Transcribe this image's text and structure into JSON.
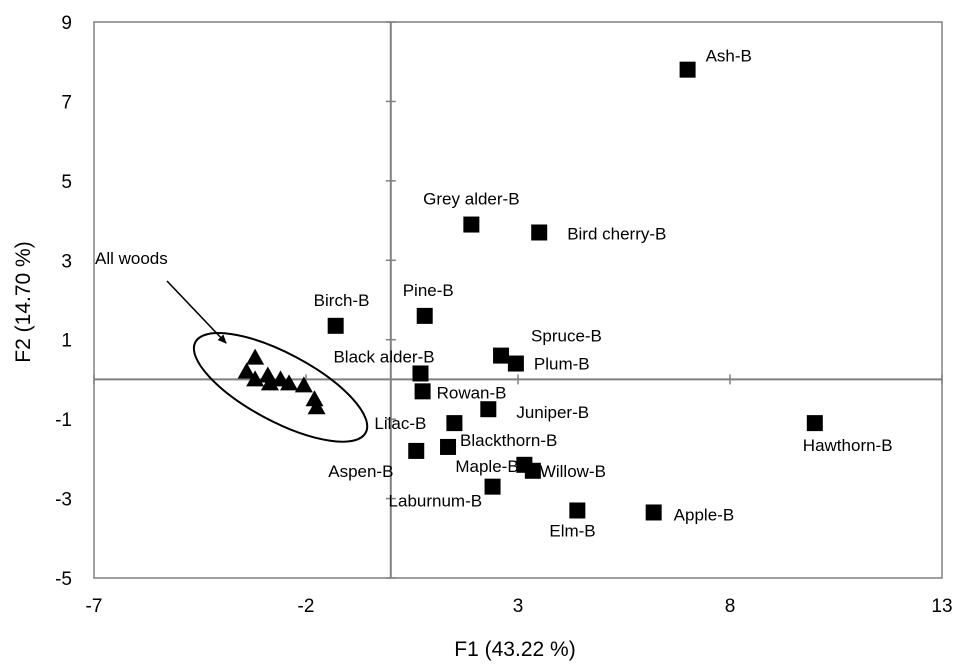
{
  "chart_data": {
    "type": "scatter",
    "xlabel": "F1 (43.22 %)",
    "ylabel": "F2 (14.70 %)",
    "xlim": [
      -7,
      13
    ],
    "ylim": [
      -5,
      9
    ],
    "x_ticks": [
      -7,
      -2,
      3,
      8,
      13
    ],
    "y_ticks": [
      -5,
      -3,
      -1,
      1,
      3,
      5,
      7,
      9
    ],
    "grid": false,
    "reference_lines": {
      "x": 0,
      "y": 0
    },
    "colors": {
      "axis": "#808080",
      "marker": "#000000"
    },
    "series": [
      {
        "marker": "square",
        "points": [
          {
            "label": "Ash-B",
            "x": 7.0,
            "y": 7.8
          },
          {
            "label": "Grey alder-B",
            "x": 1.9,
            "y": 3.9
          },
          {
            "label": "Bird cherry-B",
            "x": 3.5,
            "y": 3.7
          },
          {
            "label": "Birch-B",
            "x": -1.3,
            "y": 1.35
          },
          {
            "label": "Pine-B",
            "x": 0.8,
            "y": 1.6
          },
          {
            "label": "Spruce-B",
            "x": 2.6,
            "y": 0.6
          },
          {
            "label": "Plum-B",
            "x": 2.95,
            "y": 0.4
          },
          {
            "label": "Black alder-B",
            "x": 0.7,
            "y": 0.15
          },
          {
            "label": "Rowan-B",
            "x": 0.75,
            "y": -0.3
          },
          {
            "label": "Juniper-B",
            "x": 2.3,
            "y": -0.75
          },
          {
            "label": "Hawthorn-B",
            "x": 10.0,
            "y": -1.1
          },
          {
            "label": "Lilac-B",
            "x": 1.5,
            "y": -1.1
          },
          {
            "label": "Blackthorn-B",
            "x": 1.35,
            "y": -1.7
          },
          {
            "label": "Aspen-B",
            "x": 0.6,
            "y": -1.8
          },
          {
            "label": "Maple-B",
            "x": 3.15,
            "y": -2.15
          },
          {
            "label": "Willow-B",
            "x": 3.35,
            "y": -2.3
          },
          {
            "label": "Laburnum-B",
            "x": 2.4,
            "y": -2.7
          },
          {
            "label": "Elm-B",
            "x": 4.4,
            "y": -3.3
          },
          {
            "label": "Apple-B",
            "x": 6.2,
            "y": -3.35
          }
        ]
      },
      {
        "marker": "triangle",
        "points": [
          {
            "x": -3.2,
            "y": 0.55
          },
          {
            "x": -3.4,
            "y": 0.2
          },
          {
            "x": -3.2,
            "y": 0.0
          },
          {
            "x": -2.9,
            "y": 0.1
          },
          {
            "x": -2.6,
            "y": 0.0
          },
          {
            "x": -2.4,
            "y": -0.1
          },
          {
            "x": -2.85,
            "y": -0.1
          },
          {
            "x": -2.05,
            "y": -0.15
          },
          {
            "x": -1.8,
            "y": -0.5
          },
          {
            "x": -1.75,
            "y": -0.7
          }
        ]
      }
    ],
    "annotations": [
      {
        "text": "All woods",
        "ellipse": {
          "cx": -2.6,
          "cy": -0.2,
          "rx": 3.25,
          "ry": 0.95,
          "rotation_deg": 28
        }
      }
    ]
  }
}
